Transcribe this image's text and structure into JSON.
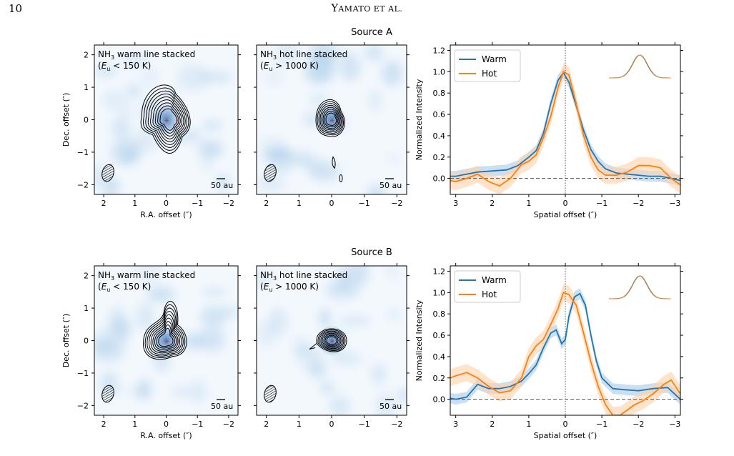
{
  "header": {
    "page_number": "10",
    "running_title_initial": "Y",
    "running_title_rest": "AMATO ET AL."
  },
  "rows": [
    {
      "source_title": "Source A",
      "map_left": {
        "label1": "NH",
        "label1_sub": "3",
        "label1_rest": " warm line stacked",
        "label2_pre": "(E",
        "label2_sub": "u",
        "label2_rest": " < 150 K)",
        "scalebar": "50 au"
      },
      "map_mid": {
        "label1": "NH",
        "label1_sub": "3",
        "label1_rest": " hot line stacked",
        "label2_pre": "(E",
        "label2_sub": "u",
        "label2_rest": " > 1000 K)",
        "scalebar": "50 au"
      }
    },
    {
      "source_title": "Source B",
      "map_left": {
        "label1": "NH",
        "label1_sub": "3",
        "label1_rest": " warm line stacked",
        "label2_pre": "(E",
        "label2_sub": "u",
        "label2_rest": " < 150 K)",
        "scalebar": "50 au"
      },
      "map_mid": {
        "label1": "NH",
        "label1_sub": "3",
        "label1_rest": " hot line stacked",
        "label2_pre": "(E",
        "label2_sub": "u",
        "label2_rest": " > 1000 K)",
        "scalebar": "50 au"
      }
    }
  ],
  "axes": {
    "map_xlabel": "R.A. offset (″)",
    "map_ylabel": "Dec. offset (″)",
    "map_ticks": [
      "2",
      "1",
      "0",
      "−1",
      "−2"
    ],
    "map_xtick_values": [
      2,
      1,
      0,
      -1,
      -2
    ],
    "map_ytick_values": [
      2,
      1,
      0,
      -1,
      -2
    ],
    "profile_xlabel": "Spatial offset (″)",
    "profile_ylabel": "Normalized Intensity",
    "profile_xticks": [
      "3",
      "2",
      "1",
      "0",
      "−1",
      "−2",
      "−3"
    ],
    "profile_xtick_values": [
      3,
      2,
      1,
      0,
      -1,
      -2,
      -3
    ],
    "profile_yticks": [
      "0.0",
      "0.2",
      "0.4",
      "0.6",
      "0.8",
      "1.0",
      "1.2"
    ],
    "profile_ytick_values": [
      0,
      0.2,
      0.4,
      0.6,
      0.8,
      1.0,
      1.2
    ]
  },
  "legend": {
    "warm": "Warm",
    "hot": "Hot"
  },
  "colors": {
    "warm": "#1f77b4",
    "hot": "#ff7f0e",
    "map_bg": "#eaf2fb",
    "warm_band": "#a9c9e6",
    "hot_band": "#ffd2a8"
  },
  "chart_data": [
    {
      "type": "line",
      "title": "Source A",
      "xlabel": "Spatial offset (″)",
      "ylabel": "Normalized Intensity",
      "xlim": [
        3.15,
        -3.15
      ],
      "ylim": [
        -0.15,
        1.25
      ],
      "series": [
        {
          "name": "Warm",
          "x": [
            3.15,
            3.0,
            2.7,
            2.4,
            2.0,
            1.6,
            1.3,
            1.0,
            0.8,
            0.6,
            0.4,
            0.2,
            0.05,
            -0.1,
            -0.3,
            -0.5,
            -0.7,
            -0.9,
            -1.1,
            -1.4,
            -1.7,
            -2.0,
            -2.3,
            -2.6,
            -2.9,
            -3.15
          ],
          "y": [
            0.02,
            0.02,
            0.04,
            0.06,
            0.07,
            0.08,
            0.12,
            0.2,
            0.26,
            0.42,
            0.7,
            0.92,
            0.99,
            0.9,
            0.68,
            0.45,
            0.27,
            0.16,
            0.09,
            0.05,
            0.04,
            0.03,
            0.02,
            0.02,
            0.0,
            -0.02
          ]
        },
        {
          "name": "Hot",
          "x": [
            3.15,
            3.0,
            2.7,
            2.4,
            2.1,
            1.8,
            1.5,
            1.2,
            1.0,
            0.8,
            0.6,
            0.4,
            0.2,
            0.05,
            -0.1,
            -0.3,
            -0.5,
            -0.7,
            -0.9,
            -1.1,
            -1.4,
            -1.7,
            -2.0,
            -2.3,
            -2.6,
            -2.9,
            -3.15
          ],
          "y": [
            -0.02,
            -0.03,
            0.0,
            0.04,
            -0.03,
            -0.07,
            0.0,
            0.13,
            0.16,
            0.22,
            0.38,
            0.58,
            0.85,
            1.0,
            0.97,
            0.7,
            0.4,
            0.2,
            0.08,
            0.03,
            0.03,
            0.06,
            0.12,
            0.12,
            0.1,
            0.0,
            -0.06
          ]
        }
      ]
    },
    {
      "type": "line",
      "title": "Source B",
      "xlabel": "Spatial offset (″)",
      "ylabel": "Normalized Intensity",
      "xlim": [
        3.15,
        -3.15
      ],
      "ylim": [
        -0.15,
        1.25
      ],
      "series": [
        {
          "name": "Warm",
          "x": [
            3.15,
            3.0,
            2.7,
            2.4,
            2.1,
            1.8,
            1.5,
            1.2,
            1.0,
            0.8,
            0.6,
            0.4,
            0.25,
            0.1,
            0.0,
            -0.1,
            -0.25,
            -0.4,
            -0.55,
            -0.7,
            -0.85,
            -1.0,
            -1.3,
            -1.6,
            -2.0,
            -2.4,
            -2.8,
            -3.15
          ],
          "y": [
            0.01,
            0.0,
            0.02,
            0.14,
            0.1,
            0.1,
            0.12,
            0.17,
            0.24,
            0.32,
            0.48,
            0.62,
            0.65,
            0.52,
            0.56,
            0.78,
            0.96,
            0.99,
            0.88,
            0.6,
            0.36,
            0.2,
            0.1,
            0.09,
            0.08,
            0.1,
            0.11,
            0.0
          ]
        },
        {
          "name": "Hot",
          "x": [
            3.15,
            3.0,
            2.7,
            2.4,
            2.1,
            1.8,
            1.5,
            1.2,
            1.0,
            0.8,
            0.6,
            0.4,
            0.2,
            0.05,
            -0.1,
            -0.3,
            -0.5,
            -0.7,
            -0.9,
            -1.1,
            -1.3,
            -1.5,
            -1.7,
            -1.9,
            -2.1,
            -2.4,
            -2.7,
            -2.9,
            -3.15
          ],
          "y": [
            0.2,
            0.22,
            0.25,
            0.2,
            0.12,
            0.06,
            0.08,
            0.2,
            0.4,
            0.5,
            0.56,
            0.7,
            0.85,
            1.0,
            0.98,
            0.88,
            0.62,
            0.35,
            0.12,
            -0.05,
            -0.15,
            -0.15,
            -0.1,
            -0.05,
            -0.02,
            0.05,
            0.14,
            0.18,
            0.05
          ]
        }
      ]
    }
  ]
}
